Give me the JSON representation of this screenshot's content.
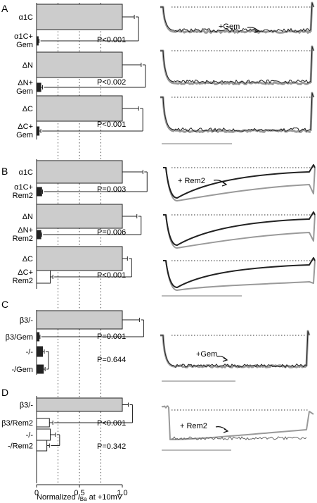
{
  "figure": {
    "xlabel": "Normalized I_Ba at +10mV",
    "xlabel_main": "Normalized ",
    "xlabel_italic": "I",
    "xlabel_sub": "Ba",
    "xlabel_tail": " at +10mV"
  },
  "chart_data": [
    {
      "panel": "A",
      "type": "bar",
      "orientation": "horizontal",
      "categories": [
        "α1C",
        "α1C+ Gem",
        "ΔN",
        "ΔN+ Gem",
        "ΔC",
        "ΔC+ Gem"
      ],
      "values": [
        1.0,
        0.02,
        1.0,
        0.05,
        1.0,
        0.03
      ],
      "errors": [
        0.14,
        0.01,
        0.22,
        0.02,
        0.19,
        0.02
      ],
      "p_values": [
        "P<0.001",
        "P<0.002",
        "P<0.001"
      ],
      "trace_annotations": [
        "+Gem"
      ],
      "xlim": [
        0,
        1.0
      ]
    },
    {
      "panel": "B",
      "type": "bar",
      "orientation": "horizontal",
      "categories": [
        "α1C",
        "α1C+ Rem2",
        "ΔN",
        "ΔN+ Rem2",
        "ΔC",
        "ΔC+ Rem2"
      ],
      "values": [
        1.0,
        0.06,
        1.0,
        0.05,
        1.0,
        0.16
      ],
      "errors": [
        0.24,
        0.01,
        0.17,
        0.01,
        0.06,
        0.03
      ],
      "p_values": [
        "P=0.003",
        "P=0.006",
        "P<0.001"
      ],
      "trace_annotations": [
        "+ Rem2"
      ],
      "xlim": [
        0,
        1.0
      ]
    },
    {
      "panel": "C",
      "type": "bar",
      "orientation": "horizontal",
      "categories": [
        "β3/-",
        "β3/Gem",
        "-/-",
        "-/Gem"
      ],
      "values": [
        1.0,
        0.03,
        0.07,
        0.08
      ],
      "errors": [
        0.2,
        0.01,
        0.02,
        0.02
      ],
      "p_values": [
        "P=0.001",
        "P=0.644"
      ],
      "trace_annotations": [
        "+Gem"
      ],
      "xlim": [
        0,
        1.0
      ]
    },
    {
      "panel": "D",
      "type": "bar",
      "orientation": "horizontal",
      "categories": [
        "β3/-",
        "β3/Rem2",
        "-/-",
        "-/Rem2"
      ],
      "values": [
        1.0,
        0.15,
        0.16,
        0.12
      ],
      "errors": [
        0.07,
        0.04,
        0.06,
        0.03
      ],
      "p_values": [
        "P<0.001",
        "P=0.342"
      ],
      "trace_annotations": [
        "+ Rem2"
      ],
      "xlim": [
        0,
        1.0
      ]
    }
  ],
  "x_ticks": [
    {
      "value": 0,
      "label": "0"
    },
    {
      "value": 0.5,
      "label": "0.5"
    },
    {
      "value": 1.0,
      "label": "1.0"
    }
  ],
  "colors": {
    "bar_fill": "#cccccc",
    "bar_stroke": "#222222",
    "trace_dark": "#222222",
    "trace_light": "#9a9a9a"
  }
}
